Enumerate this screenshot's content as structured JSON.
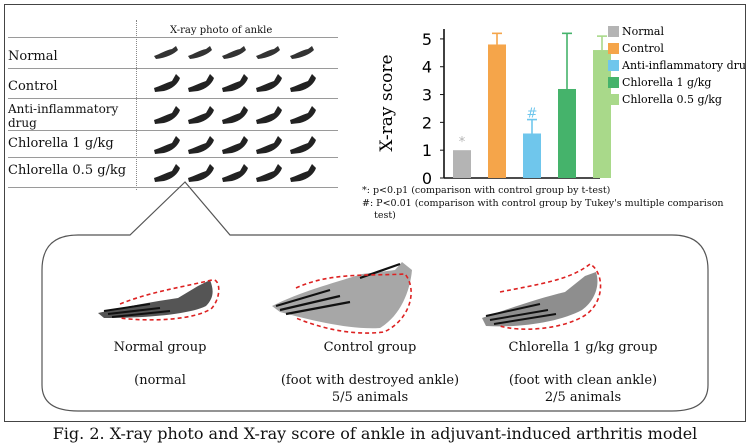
{
  "figure": {
    "caption": "Fig. 2. X-ray photo and X-ray score of ankle in adjuvant-induced arthritis model"
  },
  "photo_table": {
    "header": "X-ray photo of ankle",
    "rows": [
      {
        "label": "Normal"
      },
      {
        "label": "Control"
      },
      {
        "label_line1": "Anti-inflammatory",
        "label_line2": "drug"
      },
      {
        "label": "Chlorella 1 g/kg"
      },
      {
        "label": "Chlorella 0.5 g/kg"
      }
    ]
  },
  "footnotes": {
    "line1": "*: p<0.p1 (comparison with control group by t-test)",
    "line2": "#: P<0.01 (comparison with control group by Tukey's multiple comparison",
    "line3": "test)"
  },
  "detail": {
    "groups": [
      {
        "title": "Normal group",
        "desc": "(normal",
        "count": ""
      },
      {
        "title": "Control group",
        "desc": "(foot with destroyed ankle)",
        "count": "5/5 animals"
      },
      {
        "title": "Chlorella 1 g/kg group",
        "desc": "(foot with clean ankle)",
        "count": "2/5 animals"
      }
    ]
  },
  "chart_data": {
    "type": "bar",
    "title": "",
    "xlabel": "",
    "ylabel": "X-ray score",
    "ylim": [
      0,
      5.5
    ],
    "yticks": [
      "0",
      "1",
      "2",
      "3",
      "4",
      "5"
    ],
    "categories": [
      "Normal",
      "Control",
      "Anti-inflammatory drug",
      "Chlorella 1 g/kg",
      "Chlorella 0.5 g/kg"
    ],
    "values": [
      1.0,
      4.8,
      1.6,
      3.2,
      4.6
    ],
    "errors": [
      0.0,
      0.4,
      0.5,
      2.0,
      0.5
    ],
    "markers": [
      "*",
      "",
      "#",
      "",
      ""
    ],
    "colors": [
      "#b4b4b4",
      "#f5a54a",
      "#6fc6ec",
      "#45b36b",
      "#a9d98a"
    ],
    "legend_position": "right"
  }
}
